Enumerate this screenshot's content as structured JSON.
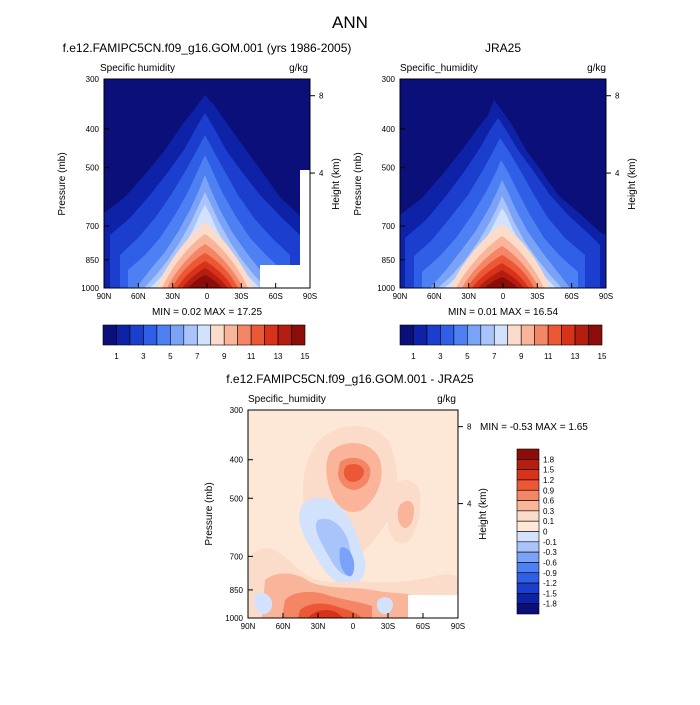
{
  "chart_data": {
    "type": "contour-panels",
    "title": "ANN",
    "panels": [
      {
        "id": "model",
        "type": "heatmap",
        "title": "f.e12.FAMIPC5CN.f09_g16.GOM.001 (yrs 1986-2005)",
        "left_string": "Specific humidity",
        "right_string": "g/kg",
        "ylabel": "Pressure (mb)",
        "ylabel_right": "Height (km)",
        "x_ticks": [
          "90N",
          "60N",
          "30N",
          "0",
          "30S",
          "60S",
          "90S"
        ],
        "y_ticks": [
          "300",
          "400",
          "500",
          "700",
          "850",
          "1000"
        ],
        "y_ticks_right": [
          "8",
          "4"
        ],
        "stats": "MIN =  0.02  MAX =  17.25",
        "min": 0.02,
        "max": 17.25,
        "colorbar_ticks": [
          "1",
          "3",
          "5",
          "7",
          "9",
          "11",
          "13",
          "15"
        ]
      },
      {
        "id": "obs",
        "type": "heatmap",
        "title": "JRA25",
        "left_string": "Specific_humidity",
        "right_string": "g/kg",
        "ylabel": "Pressure (mb)",
        "ylabel_right": "Height (km)",
        "x_ticks": [
          "90N",
          "60N",
          "30N",
          "0",
          "30S",
          "60S",
          "90S"
        ],
        "y_ticks": [
          "300",
          "400",
          "500",
          "700",
          "850",
          "1000"
        ],
        "y_ticks_right": [
          "8",
          "4"
        ],
        "stats": "MIN =  0.01  MAX =  16.54",
        "min": 0.01,
        "max": 16.54,
        "colorbar_ticks": [
          "1",
          "3",
          "5",
          "7",
          "9",
          "11",
          "13",
          "15"
        ]
      },
      {
        "id": "diff",
        "type": "heatmap",
        "title": "f.e12.FAMIPC5CN.f09_g16.GOM.001 - JRA25",
        "left_string": "Specific_humidity",
        "right_string": "g/kg",
        "ylabel": "Pressure (mb)",
        "ylabel_right": "Height (km)",
        "x_ticks": [
          "90N",
          "60N",
          "30N",
          "0",
          "30S",
          "60S",
          "90S"
        ],
        "y_ticks": [
          "300",
          "400",
          "500",
          "700",
          "850",
          "1000"
        ],
        "y_ticks_right": [
          "8",
          "4"
        ],
        "stats": "MIN = -0.53  MAX =   1.65",
        "min": -0.53,
        "max": 1.65,
        "colorbar_ticks": [
          "1.8",
          "1.5",
          "1.2",
          "0.9",
          "0.6",
          "0.3",
          "0.1",
          "0",
          "-0.1",
          "-0.3",
          "-0.6",
          "-0.9",
          "-1.2",
          "-1.5",
          "-1.8"
        ]
      }
    ],
    "colors": {
      "full": [
        "#0a0f7a",
        "#0e22a8",
        "#1b3ecf",
        "#2e5fe6",
        "#4d80f2",
        "#7aa3f7",
        "#a8c4fa",
        "#d3e2fc",
        "#fbdcca",
        "#f9b49a",
        "#f48565",
        "#ec5836",
        "#d9321b",
        "#b41d10",
        "#8a0d09"
      ],
      "diff": [
        "#8a0d09",
        "#b41d10",
        "#d9321b",
        "#ec5836",
        "#f48565",
        "#f9b49a",
        "#fbdcca",
        "#fde8d7",
        "#d3e2fc",
        "#a8c4fa",
        "#7aa3f7",
        "#4d80f2",
        "#2e5fe6",
        "#1b3ecf",
        "#0e22a8",
        "#0a0f7a"
      ]
    }
  }
}
